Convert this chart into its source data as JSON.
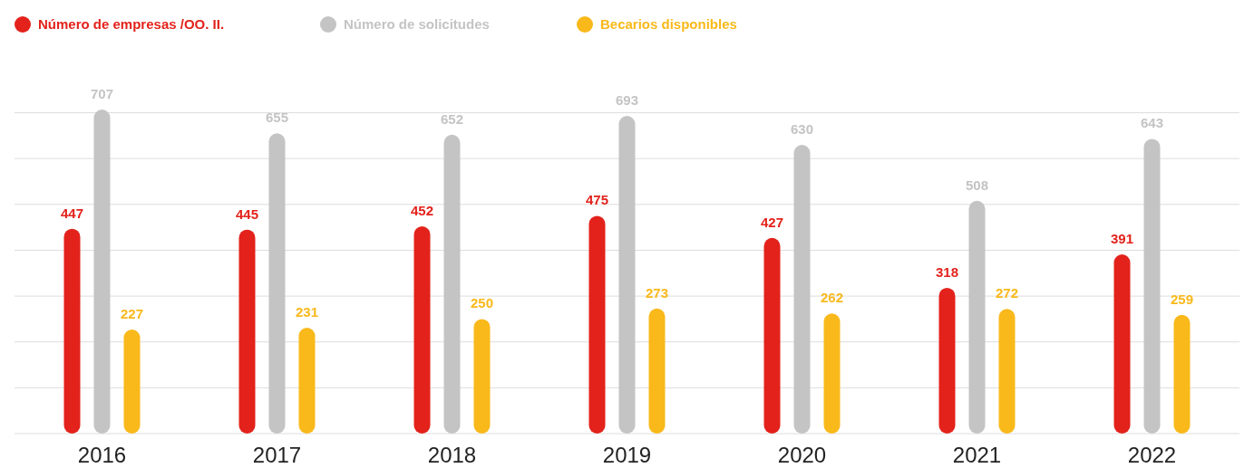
{
  "chart_data": {
    "type": "bar",
    "categories": [
      "2016",
      "2017",
      "2018",
      "2019",
      "2020",
      "2021",
      "2022"
    ],
    "series": [
      {
        "name": "Número de empresas /OO. II.",
        "color": "#e3221b",
        "values": [
          447,
          445,
          452,
          475,
          427,
          318,
          391
        ]
      },
      {
        "name": "Número de solicitudes",
        "color": "#c4c4c4",
        "values": [
          707,
          655,
          652,
          693,
          630,
          508,
          643
        ]
      },
      {
        "name": "Becarios disponibles",
        "color": "#f9b91b",
        "values": [
          227,
          231,
          250,
          273,
          262,
          272,
          259
        ]
      }
    ],
    "yticks": [
      {
        "value": 0,
        "label": null
      },
      {
        "value": 100,
        "label": null
      },
      {
        "value": 200,
        "label": null
      },
      {
        "value": 300,
        "label": null
      },
      {
        "value": 400,
        "label": null
      },
      {
        "value": 500,
        "label": null
      },
      {
        "value": 600,
        "label": null
      },
      {
        "value": 700,
        "label": null
      }
    ],
    "grid": "y",
    "legend": "top left",
    "data_labels": true,
    "tick_labels": "x"
  }
}
